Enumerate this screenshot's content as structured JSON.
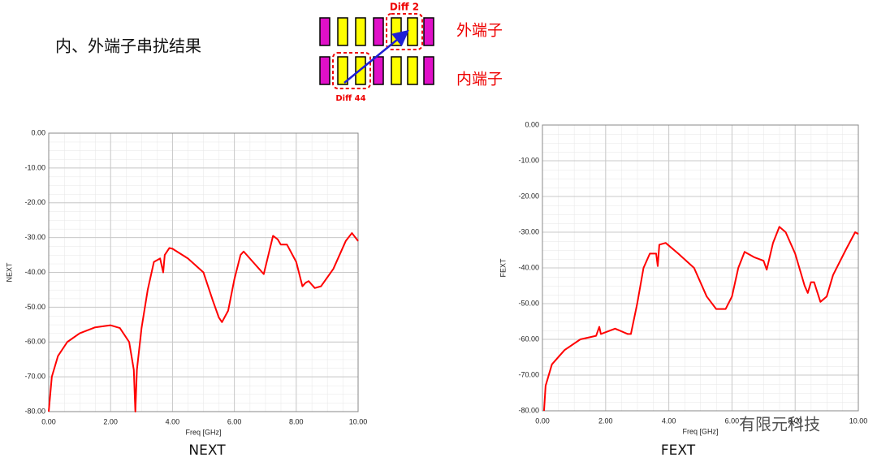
{
  "title": "内、外端子串扰结果",
  "diagram": {
    "diff_top": "Diff 2",
    "diff_bottom": "Diff 44",
    "outer_label": "外端子",
    "inner_label": "内端子"
  },
  "watermark": "有限元科技",
  "chart_data": [
    {
      "type": "line",
      "caption": "NEXT",
      "xlabel": "Freq [GHz]",
      "ylabel": "NEXT",
      "color": "#ff0000",
      "grid": true,
      "x": [
        0.0,
        0.1,
        0.3,
        0.6,
        1.0,
        1.5,
        2.0,
        2.3,
        2.6,
        2.75,
        2.8,
        2.85,
        3.0,
        3.2,
        3.4,
        3.6,
        3.7,
        3.75,
        3.9,
        4.0,
        4.5,
        5.0,
        5.3,
        5.5,
        5.6,
        5.8,
        6.0,
        6.2,
        6.3,
        6.6,
        6.8,
        6.95,
        7.1,
        7.25,
        7.4,
        7.5,
        7.7,
        8.0,
        8.2,
        8.3,
        8.4,
        8.6,
        8.8,
        9.2,
        9.6,
        9.8,
        10.0
      ],
      "values": [
        -80,
        -70,
        -64,
        -60,
        -57.5,
        -55.8,
        -55.2,
        -56,
        -60,
        -68,
        -80,
        -68,
        -56,
        -45,
        -37,
        -36,
        -40,
        -35,
        -33,
        -33.2,
        -36,
        -40,
        -48,
        -53,
        -54.3,
        -51,
        -42,
        -35,
        -34,
        -37,
        -39,
        -40.5,
        -35,
        -29.5,
        -30.5,
        -32,
        -32,
        -37,
        -44,
        -43,
        -42.5,
        -44.5,
        -44,
        -39,
        -31,
        -28.7,
        -31
      ],
      "xlim": [
        0,
        10
      ],
      "ylim": [
        -80,
        0
      ],
      "xticks": [
        {
          "value": 0,
          "label": "0.00"
        },
        {
          "value": 2,
          "label": "2.00"
        },
        {
          "value": 4,
          "label": "4.00"
        },
        {
          "value": 6,
          "label": "6.00"
        },
        {
          "value": 8,
          "label": "8.00"
        },
        {
          "value": 10,
          "label": "10.00"
        }
      ],
      "yticks": [
        {
          "value": 0,
          "label": "0.00"
        },
        {
          "value": -10,
          "label": "-10.00"
        },
        {
          "value": -20,
          "label": "-20.00"
        },
        {
          "value": -30,
          "label": "-30.00"
        },
        {
          "value": -40,
          "label": "-40.00"
        },
        {
          "value": -50,
          "label": "-50.00"
        },
        {
          "value": -60,
          "label": "-60.00"
        },
        {
          "value": -70,
          "label": "-70.00"
        },
        {
          "value": -80,
          "label": "-80.00"
        }
      ]
    },
    {
      "type": "line",
      "caption": "FEXT",
      "xlabel": "Freq [GHz]",
      "ylabel": "FEXT",
      "color": "#ff0000",
      "grid": true,
      "x": [
        0.05,
        0.1,
        0.3,
        0.7,
        1.2,
        1.7,
        1.8,
        1.85,
        2.3,
        2.7,
        2.8,
        3.0,
        3.2,
        3.4,
        3.6,
        3.65,
        3.7,
        3.9,
        4.3,
        4.8,
        5.2,
        5.5,
        5.8,
        6.0,
        6.2,
        6.4,
        6.7,
        7.0,
        7.1,
        7.3,
        7.5,
        7.7,
        8.0,
        8.3,
        8.4,
        8.5,
        8.6,
        8.8,
        9.0,
        9.2,
        9.6,
        9.9,
        10.0
      ],
      "values": [
        -80,
        -73,
        -67,
        -63,
        -60,
        -59,
        -56.5,
        -58.5,
        -57,
        -58.5,
        -58.5,
        -50,
        -40,
        -36,
        -36,
        -39.5,
        -33.5,
        -33,
        -36,
        -40,
        -48,
        -51.5,
        -51.5,
        -48,
        -40,
        -35.5,
        -37,
        -38,
        -40.5,
        -33,
        -28.5,
        -30,
        -36,
        -45,
        -47,
        -44,
        -44,
        -49.5,
        -48,
        -42,
        -35,
        -30,
        -30.5
      ],
      "xlim": [
        0,
        10
      ],
      "ylim": [
        -80,
        0
      ],
      "xticks": [
        {
          "value": 0,
          "label": "0.00"
        },
        {
          "value": 2,
          "label": "2.00"
        },
        {
          "value": 4,
          "label": "4.00"
        },
        {
          "value": 6,
          "label": "6.00"
        },
        {
          "value": 8,
          "label": "8.00"
        },
        {
          "value": 10,
          "label": "10.00"
        }
      ],
      "yticks": [
        {
          "value": 0,
          "label": "0.00"
        },
        {
          "value": -10,
          "label": "-10.00"
        },
        {
          "value": -20,
          "label": "-20.00"
        },
        {
          "value": -30,
          "label": "-30.00"
        },
        {
          "value": -40,
          "label": "-40.00"
        },
        {
          "value": -50,
          "label": "-50.00"
        },
        {
          "value": -60,
          "label": "-60.00"
        },
        {
          "value": -70,
          "label": "-70.00"
        },
        {
          "value": -80,
          "label": "-80.00"
        }
      ]
    }
  ]
}
